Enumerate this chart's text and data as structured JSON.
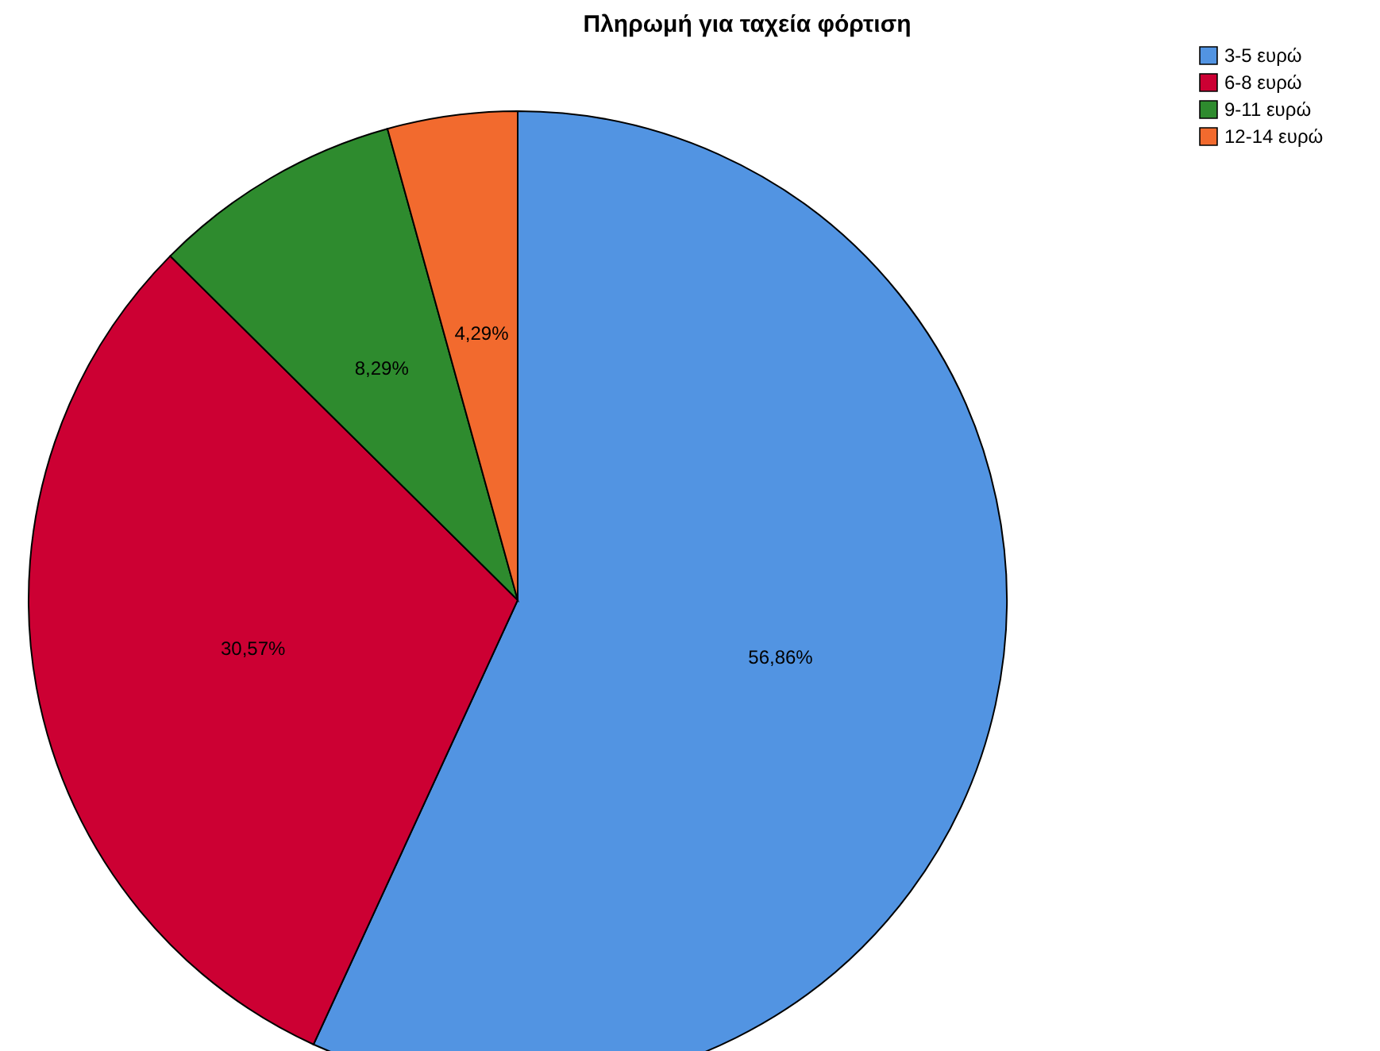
{
  "chart_data": {
    "type": "pie",
    "title": "Πληρωμή για ταχεία φόρτιση",
    "categories": [
      "3-5 ευρώ",
      "6-8 ευρώ",
      "9-11 ευρώ",
      "12-14 ευρώ"
    ],
    "values": [
      56.86,
      30.57,
      8.29,
      4.29
    ],
    "value_labels": [
      "56,86%",
      "30,57%",
      "8,29%",
      "4,29%"
    ],
    "colors": [
      "#5294e2",
      "#cc0033",
      "#2e8b2e",
      "#f26a2e"
    ],
    "legend": "top right"
  }
}
